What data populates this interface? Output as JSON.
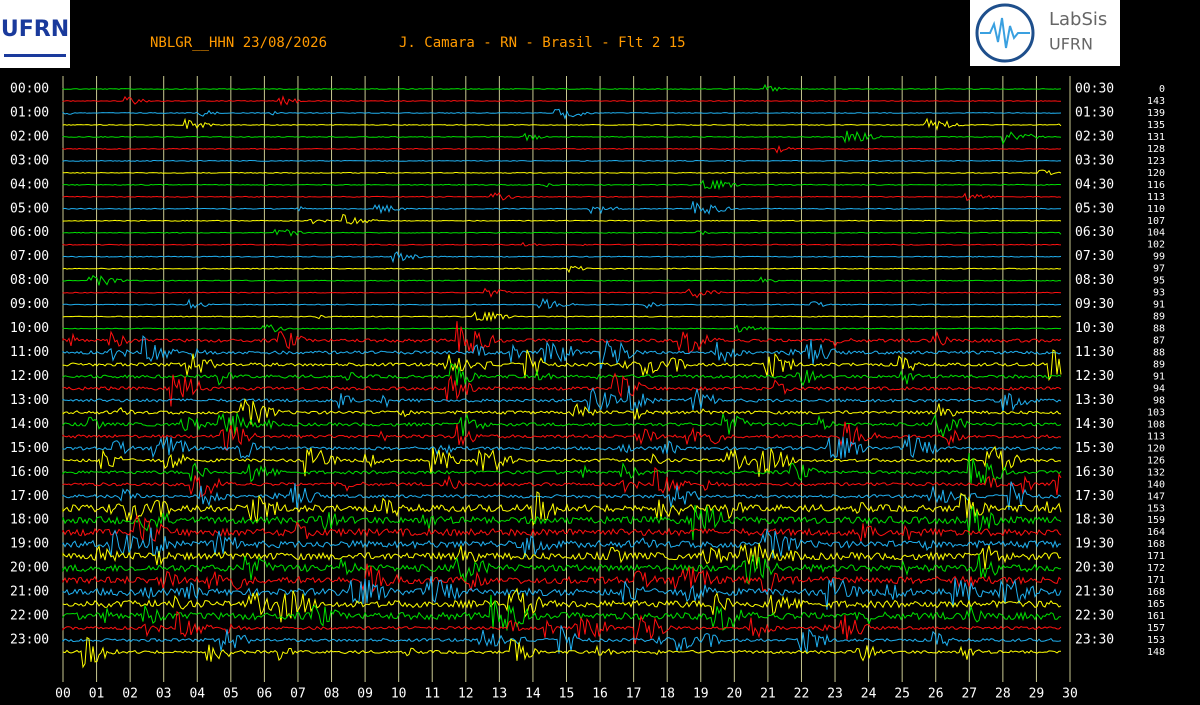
{
  "header": {
    "title": "NBLGR__HHN 23/08/2026",
    "station": "J. Camara - RN - Brasil - Flt 2 15"
  },
  "logos": {
    "left": "UFRN",
    "right_title": "LabSis",
    "right_sub": "UFRN"
  },
  "left_labels": [
    "00:00",
    "01:00",
    "02:00",
    "03:00",
    "04:00",
    "05:00",
    "06:00",
    "07:00",
    "08:00",
    "09:00",
    "10:00",
    "11:00",
    "12:00",
    "13:00",
    "14:00",
    "15:00",
    "16:00",
    "17:00",
    "18:00",
    "19:00",
    "20:00",
    "21:00",
    "22:00",
    "23:00"
  ],
  "right_labels": [
    "00:30",
    "01:30",
    "02:30",
    "03:30",
    "04:30",
    "05:30",
    "06:30",
    "07:30",
    "08:30",
    "09:30",
    "10:30",
    "11:30",
    "12:30",
    "13:30",
    "14:30",
    "15:30",
    "16:30",
    "17:30",
    "18:30",
    "19:30",
    "20:30",
    "21:30",
    "22:30",
    "23:30"
  ],
  "row_numbers": [
    0,
    143,
    139,
    135,
    131,
    128,
    123,
    120,
    116,
    113,
    110,
    107,
    104,
    102,
    99,
    97,
    95,
    93,
    91,
    89,
    88,
    87,
    88,
    89,
    91,
    94,
    98,
    103,
    108,
    113,
    120,
    126,
    132,
    140,
    147,
    153,
    159,
    164,
    168,
    171,
    172,
    171,
    168,
    165,
    161,
    157,
    153,
    148
  ],
  "x_labels": [
    "00",
    "01",
    "02",
    "03",
    "04",
    "05",
    "06",
    "07",
    "08",
    "09",
    "10",
    "11",
    "12",
    "13",
    "14",
    "15",
    "16",
    "17",
    "18",
    "19",
    "20",
    "21",
    "22",
    "23",
    "24",
    "25",
    "26",
    "27",
    "28",
    "29",
    "30"
  ]
}
